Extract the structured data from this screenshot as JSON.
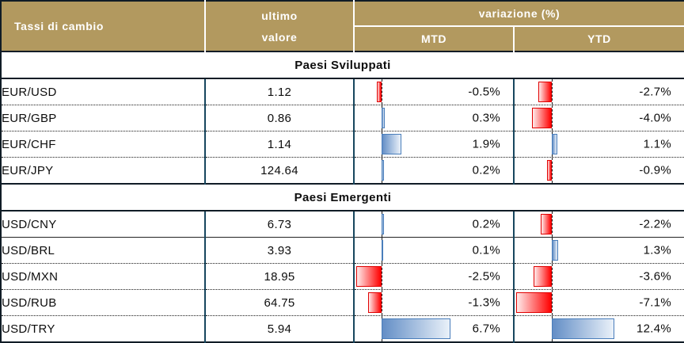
{
  "header": {
    "rates_label": "Tassi di cambio",
    "last_value_line1": "ultimo",
    "last_value_line2": "valore",
    "variation_label": "variazione (%)",
    "mtd_label": "MTD",
    "ytd_label": "YTD"
  },
  "colors": {
    "header_bg": "#B2995F",
    "header_text": "#FFFFFF",
    "frame": "#101C26",
    "column_divider": "#17465E",
    "positive_bar_border": "#4A7EBB",
    "positive_bar_start": "#638EC6",
    "positive_bar_end": "#EAF1F9",
    "negative_bar_border": "#E00000",
    "negative_bar_start": "#FFEAEA",
    "negative_bar_end": "#FF0000"
  },
  "chart_data": {
    "type": "table",
    "title": "Tassi di cambio",
    "columns": [
      "Tassi di cambio",
      "ultimo valore",
      "variazione (%) MTD",
      "variazione (%) YTD"
    ],
    "bar_style": "negative values red bar left of dashed zero axis, positive values blue bar right of axis",
    "sections": [
      {
        "label": "Paesi Sviluppati",
        "rows": [
          {
            "pair": "EUR/USD",
            "last": "1.12",
            "mtd": -0.5,
            "mtd_label": "-0.5%",
            "ytd": -2.7,
            "ytd_label": "-2.7%",
            "divider": "dotted"
          },
          {
            "pair": "EUR/GBP",
            "last": "0.86",
            "mtd": 0.3,
            "mtd_label": "0.3%",
            "ytd": -4.0,
            "ytd_label": "-4.0%",
            "divider": "dotted"
          },
          {
            "pair": "EUR/CHF",
            "last": "1.14",
            "mtd": 1.9,
            "mtd_label": "1.9%",
            "ytd": 1.1,
            "ytd_label": "1.1%",
            "divider": "dotted"
          },
          {
            "pair": "EUR/JPY",
            "last": "124.64",
            "mtd": 0.2,
            "mtd_label": "0.2%",
            "ytd": -0.9,
            "ytd_label": "-0.9%",
            "divider": "none"
          }
        ]
      },
      {
        "label": "Paesi Emergenti",
        "rows": [
          {
            "pair": "USD/CNY",
            "last": "6.73",
            "mtd": 0.2,
            "mtd_label": "0.2%",
            "ytd": -2.2,
            "ytd_label": "-2.2%",
            "divider": "solid"
          },
          {
            "pair": "USD/BRL",
            "last": "3.93",
            "mtd": 0.1,
            "mtd_label": "0.1%",
            "ytd": 1.3,
            "ytd_label": "1.3%",
            "divider": "dotted"
          },
          {
            "pair": "USD/MXN",
            "last": "18.95",
            "mtd": -2.5,
            "mtd_label": "-2.5%",
            "ytd": -3.6,
            "ytd_label": "-3.6%",
            "divider": "dotted"
          },
          {
            "pair": "USD/RUB",
            "last": "64.75",
            "mtd": -1.3,
            "mtd_label": "-1.3%",
            "ytd": -7.1,
            "ytd_label": "-7.1%",
            "divider": "dotted"
          },
          {
            "pair": "USD/TRY",
            "last": "5.94",
            "mtd": 6.7,
            "mtd_label": "6.7%",
            "ytd": 12.4,
            "ytd_label": "12.4%",
            "divider": "none"
          }
        ]
      }
    ]
  }
}
